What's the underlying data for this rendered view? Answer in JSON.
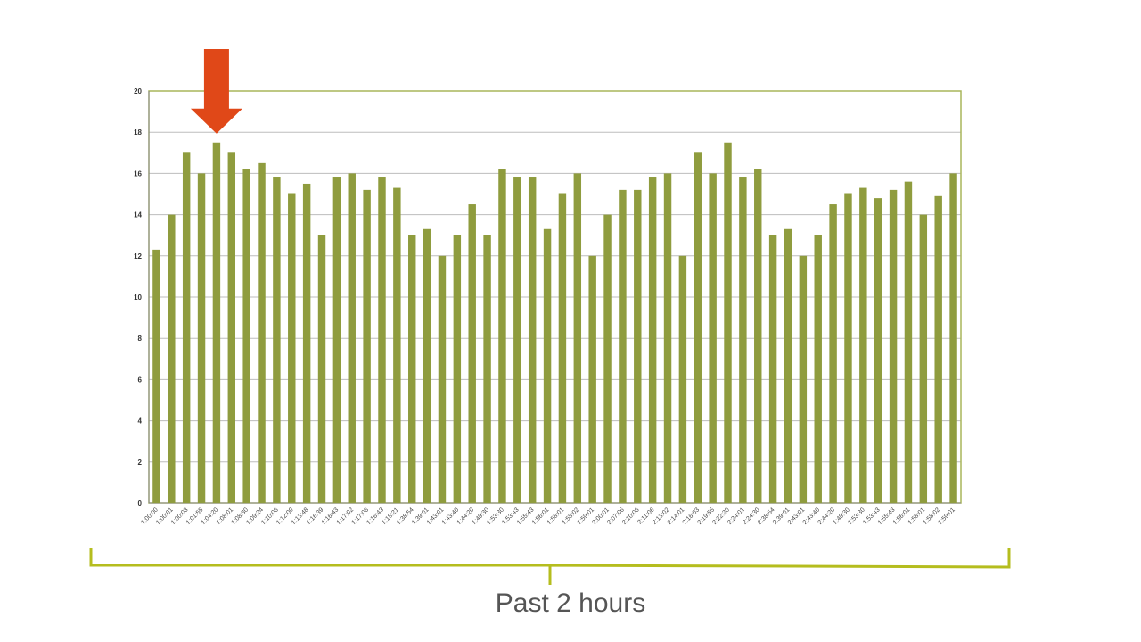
{
  "chart_data": {
    "type": "bar",
    "title": "",
    "xlabel": "",
    "ylabel": "",
    "ylim": [
      0,
      20
    ],
    "yticks": [
      0,
      2,
      4,
      6,
      8,
      10,
      12,
      14,
      16,
      18,
      20
    ],
    "grid": true,
    "legend": "none",
    "bar_color": "#8f9c3e",
    "frame_color": "#a8b55a",
    "categories": [
      "1:00:00",
      "1:00:01",
      "1:00:03",
      "1:01:55",
      "1:04:20",
      "1:08:01",
      "1:08:30",
      "1:09:24",
      "1:10:06",
      "1:12:00",
      "1:13:48",
      "1:16:39",
      "1:16:43",
      "1:17:02",
      "1:17:06",
      "1:16:43",
      "1:18:21",
      "1:38:54",
      "1:39:01",
      "1:43:01",
      "1:43:40",
      "1:44:20",
      "1:49:30",
      "1:53:30",
      "1:53:43",
      "1:55:43",
      "1:56:01",
      "1:58:01",
      "1:58:02",
      "1:59:01",
      "2:00:01",
      "2:07:06",
      "2:10:06",
      "2:11:06",
      "2:13:02",
      "2:14:01",
      "2:16:03",
      "2:19:55",
      "2:22:20",
      "2:24:01",
      "2:24:30",
      "2:38:54",
      "2:39:01",
      "2:43:01",
      "2:43:40",
      "2:44:20",
      "1:49:30",
      "1:53:30",
      "1:53:43",
      "1:55:43",
      "1:56:01",
      "1:58:01",
      "1:58:02",
      "1:59:01"
    ],
    "values": [
      12.3,
      14,
      17,
      16,
      17.5,
      17,
      16.2,
      16.5,
      15.8,
      15,
      15.5,
      13,
      15.8,
      16,
      15.2,
      15.8,
      15.3,
      13,
      13.3,
      12,
      13,
      14.5,
      13,
      16.2,
      15.8,
      15.8,
      13.3,
      15,
      16,
      12,
      14,
      15.2,
      15.2,
      15.8,
      16,
      12,
      17,
      16,
      17.5,
      15.8,
      16.2,
      13,
      13.3,
      12,
      13,
      14.5,
      15,
      15.3,
      14.8,
      15.2,
      15.6,
      14,
      14.9,
      16
    ],
    "highlight": {
      "category_index": 4,
      "marker": "arrow",
      "color": "#e04818"
    }
  },
  "annotation": {
    "caption": "Past 2 hours",
    "bracket_color": "#b5bd1e"
  }
}
